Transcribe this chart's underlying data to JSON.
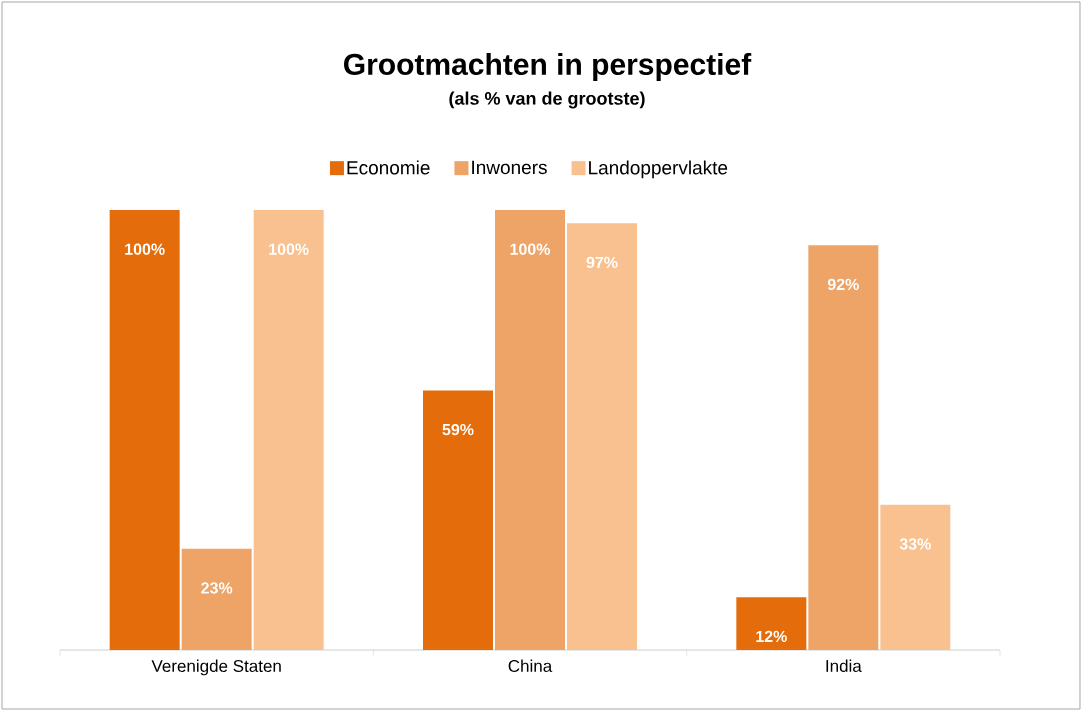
{
  "chart_data": {
    "type": "bar",
    "title": "Grootmachten in perspectief",
    "subtitle": "(als % van de grootste)",
    "categories": [
      "Verenigde Staten",
      "China",
      "India"
    ],
    "series": [
      {
        "name": "Economie",
        "color": "#e46c0a",
        "values": [
          100,
          59,
          12
        ],
        "value_labels": [
          "100%",
          "59%",
          "12%"
        ]
      },
      {
        "name": "Inwoners",
        "color": "#eda466",
        "values": [
          23,
          100,
          92
        ],
        "value_labels": [
          "23%",
          "100%",
          "92%"
        ]
      },
      {
        "name": "Landoppervlakte",
        "color": "#f9c190",
        "values": [
          100,
          97,
          33
        ],
        "value_labels": [
          "100%",
          "97%",
          "33%"
        ]
      }
    ],
    "legend": "top"
  }
}
